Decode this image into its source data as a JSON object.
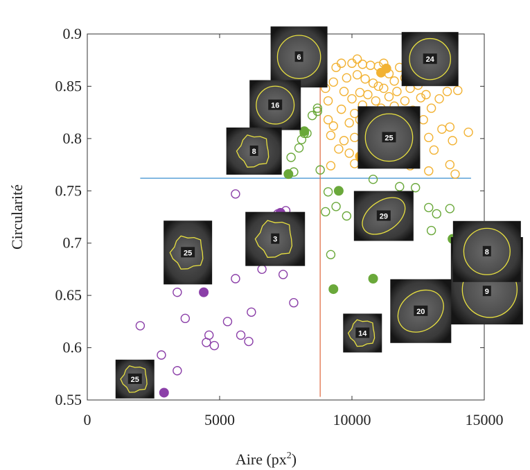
{
  "chart_data": {
    "type": "scatter",
    "xlabel": "Aire (px",
    "xlabel_sup": "2",
    "xlabel_close": ")",
    "ylabel": "Circularité",
    "xlim": [
      0,
      15000
    ],
    "ylim": [
      0.55,
      0.9
    ],
    "x_ticks": [
      0,
      5000,
      10000,
      15000
    ],
    "y_ticks": [
      0.55,
      0.6,
      0.65,
      0.7,
      0.75,
      0.8,
      0.85,
      0.9
    ],
    "x_tick_labels": [
      "0",
      "5000",
      "10000",
      "15000"
    ],
    "y_tick_labels": [
      "0.55",
      "0.6",
      "0.65",
      "0.7",
      "0.75",
      "0.8",
      "0.85",
      "0.9"
    ],
    "grid": false,
    "colors": {
      "purple": "#8b3fa8",
      "green": "#6aa83a",
      "orange": "#f2b233",
      "hline": "#5aa0d8",
      "vline": "#e0704a",
      "cell_border": "#e8e040"
    },
    "lines": {
      "horizontal": {
        "y": 0.762,
        "x_from": 2000,
        "x_to": 14500
      },
      "vertical": {
        "x": 8800,
        "y_from": 0.553,
        "y_to": 0.873
      }
    },
    "series": [
      {
        "color": "purple",
        "open": [
          [
            2000,
            0.621
          ],
          [
            2800,
            0.593
          ],
          [
            3400,
            0.578
          ],
          [
            3400,
            0.653
          ],
          [
            3700,
            0.628
          ],
          [
            4500,
            0.605
          ],
          [
            4600,
            0.612
          ],
          [
            4800,
            0.602
          ],
          [
            5300,
            0.625
          ],
          [
            5600,
            0.666
          ],
          [
            5600,
            0.747
          ],
          [
            5800,
            0.612
          ],
          [
            6100,
            0.606
          ],
          [
            6200,
            0.634
          ],
          [
            6500,
            0.688
          ],
          [
            6600,
            0.675
          ],
          [
            6900,
            0.7
          ],
          [
            7100,
            0.69
          ],
          [
            7200,
            0.728
          ],
          [
            7400,
            0.67
          ],
          [
            7500,
            0.731
          ],
          [
            7800,
            0.691
          ],
          [
            7800,
            0.688
          ],
          [
            7800,
            0.643
          ]
        ],
        "filled": [
          [
            2900,
            0.557
          ],
          [
            4400,
            0.653
          ],
          [
            7300,
            0.729
          ]
        ]
      },
      {
        "color": "green",
        "open": [
          [
            7800,
            0.768
          ],
          [
            8000,
            0.791
          ],
          [
            8100,
            0.799
          ],
          [
            8200,
            0.805
          ],
          [
            8300,
            0.805
          ],
          [
            8500,
            0.822
          ],
          [
            8700,
            0.826
          ],
          [
            8700,
            0.829
          ],
          [
            9000,
            0.73
          ],
          [
            9100,
            0.749
          ],
          [
            9200,
            0.689
          ],
          [
            9400,
            0.735
          ],
          [
            9800,
            0.726
          ],
          [
            10400,
            0.742
          ],
          [
            10500,
            0.729
          ],
          [
            10800,
            0.761
          ],
          [
            11800,
            0.754
          ],
          [
            12400,
            0.753
          ],
          [
            12900,
            0.734
          ],
          [
            13000,
            0.712
          ],
          [
            13200,
            0.728
          ],
          [
            13700,
            0.733
          ],
          [
            7700,
            0.782
          ],
          [
            8800,
            0.77
          ]
        ],
        "filled": [
          [
            7600,
            0.766
          ],
          [
            7900,
            0.862
          ],
          [
            8200,
            0.807
          ],
          [
            9300,
            0.656
          ],
          [
            9500,
            0.75
          ],
          [
            10800,
            0.666
          ],
          [
            13800,
            0.704
          ]
        ]
      },
      {
        "color": "orange",
        "open": [
          [
            8900,
            0.862
          ],
          [
            9000,
            0.848
          ],
          [
            9100,
            0.836
          ],
          [
            9100,
            0.818
          ],
          [
            9200,
            0.803
          ],
          [
            9300,
            0.812
          ],
          [
            9300,
            0.854
          ],
          [
            9400,
            0.868
          ],
          [
            9500,
            0.79
          ],
          [
            9600,
            0.872
          ],
          [
            9600,
            0.828
          ],
          [
            9700,
            0.845
          ],
          [
            9700,
            0.798
          ],
          [
            9800,
            0.858
          ],
          [
            9900,
            0.815
          ],
          [
            9900,
            0.786
          ],
          [
            10000,
            0.872
          ],
          [
            10000,
            0.838
          ],
          [
            10100,
            0.824
          ],
          [
            10100,
            0.801
          ],
          [
            10200,
            0.876
          ],
          [
            10200,
            0.861
          ],
          [
            10300,
            0.844
          ],
          [
            10300,
            0.818
          ],
          [
            10400,
            0.871
          ],
          [
            10400,
            0.832
          ],
          [
            10500,
            0.808
          ],
          [
            10500,
            0.857
          ],
          [
            10600,
            0.79
          ],
          [
            10600,
            0.842
          ],
          [
            10700,
            0.87
          ],
          [
            10700,
            0.824
          ],
          [
            10800,
            0.811
          ],
          [
            10800,
            0.853
          ],
          [
            10900,
            0.836
          ],
          [
            10900,
            0.797
          ],
          [
            11000,
            0.869
          ],
          [
            11000,
            0.85
          ],
          [
            11100,
            0.829
          ],
          [
            11100,
            0.805
          ],
          [
            11200,
            0.872
          ],
          [
            11200,
            0.848
          ],
          [
            11300,
            0.826
          ],
          [
            11300,
            0.81
          ],
          [
            11400,
            0.862
          ],
          [
            11400,
            0.84
          ],
          [
            11500,
            0.819
          ],
          [
            11500,
            0.79
          ],
          [
            11600,
            0.855
          ],
          [
            11600,
            0.831
          ],
          [
            11700,
            0.845
          ],
          [
            11700,
            0.803
          ],
          [
            11800,
            0.868
          ],
          [
            11800,
            0.823
          ],
          [
            11900,
            0.81
          ],
          [
            12000,
            0.858
          ],
          [
            12000,
            0.836
          ],
          [
            12100,
            0.796
          ],
          [
            12200,
            0.848
          ],
          [
            12200,
            0.816
          ],
          [
            12300,
            0.827
          ],
          [
            12400,
            0.806
          ],
          [
            12500,
            0.851
          ],
          [
            12600,
            0.839
          ],
          [
            12700,
            0.818
          ],
          [
            12800,
            0.842
          ],
          [
            12900,
            0.801
          ],
          [
            13000,
            0.829
          ],
          [
            13100,
            0.789
          ],
          [
            13300,
            0.838
          ],
          [
            13400,
            0.809
          ],
          [
            13600,
            0.845
          ],
          [
            13700,
            0.811
          ],
          [
            13800,
            0.858
          ],
          [
            13800,
            0.798
          ],
          [
            13900,
            0.766
          ],
          [
            14000,
            0.846
          ],
          [
            14400,
            0.806
          ],
          [
            13700,
            0.775
          ],
          [
            12900,
            0.769
          ],
          [
            12200,
            0.774
          ],
          [
            11300,
            0.779
          ],
          [
            10900,
            0.782
          ],
          [
            9200,
            0.774
          ],
          [
            10100,
            0.776
          ]
        ],
        "filled": [
          [
            10300,
            0.783
          ],
          [
            11100,
            0.863
          ],
          [
            11300,
            0.867
          ]
        ]
      }
    ],
    "annotations": [
      {
        "label": "6",
        "x": 8000,
        "y": 0.878
      },
      {
        "label": "24",
        "x": 12950,
        "y": 0.876
      },
      {
        "label": "16",
        "x": 7100,
        "y": 0.832
      },
      {
        "label": "25",
        "x": 11400,
        "y": 0.801
      },
      {
        "label": "8",
        "x": 6300,
        "y": 0.788
      },
      {
        "label": "29",
        "x": 11200,
        "y": 0.726
      },
      {
        "label": "3",
        "x": 7100,
        "y": 0.704
      },
      {
        "label": "25",
        "x": 3800,
        "y": 0.691
      },
      {
        "label": "9",
        "x": 15100,
        "y": 0.664
      },
      {
        "label": "8",
        "x": 15100,
        "y": 0.692
      },
      {
        "label": "20",
        "x": 12600,
        "y": 0.635
      },
      {
        "label": "14",
        "x": 10400,
        "y": 0.614
      },
      {
        "label": "25",
        "x": 1800,
        "y": 0.57
      }
    ]
  }
}
